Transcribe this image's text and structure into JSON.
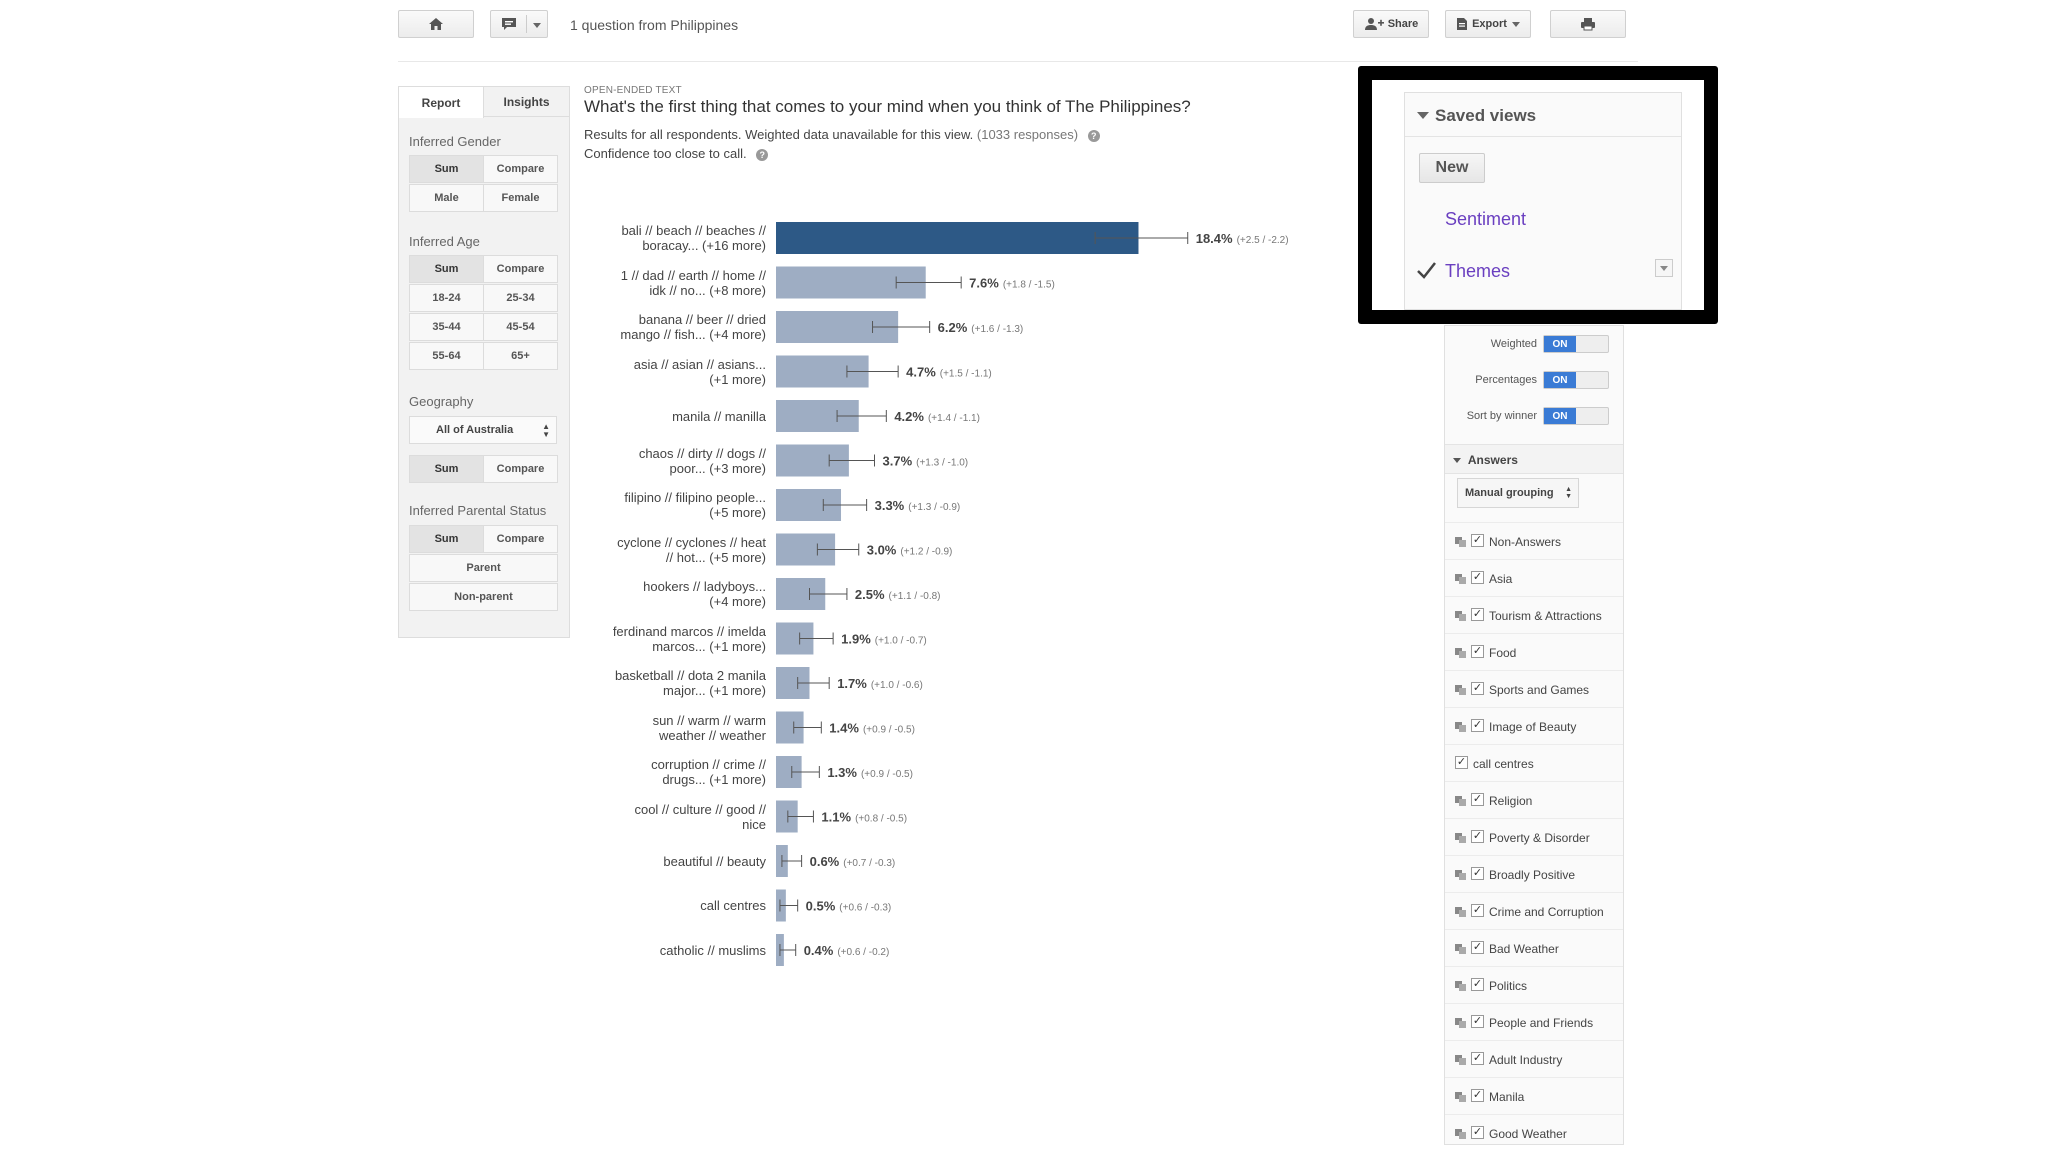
{
  "toolbar": {
    "home_icon": "home-icon",
    "comment_icon": "comment-icon",
    "context": "1 question from Philippines",
    "share_label": "Share",
    "export_label": "Export",
    "print_icon": "print-icon"
  },
  "filters": {
    "tabs": [
      "Report",
      "Insights"
    ],
    "gender": {
      "label": "Inferred Gender",
      "sum": "Sum",
      "compare": "Compare",
      "options": [
        "Male",
        "Female"
      ]
    },
    "age": {
      "label": "Inferred Age",
      "sum": "Sum",
      "compare": "Compare",
      "options": [
        "18-24",
        "25-34",
        "35-44",
        "45-54",
        "55-64",
        "65+"
      ]
    },
    "geography": {
      "label": "Geography",
      "select": "All of Australia",
      "sum": "Sum",
      "compare": "Compare"
    },
    "parental": {
      "label": "Inferred Parental Status",
      "sum": "Sum",
      "compare": "Compare",
      "options": [
        "Parent",
        "Non-parent"
      ]
    }
  },
  "question": {
    "type": "OPEN-ENDED TEXT",
    "title": "What's the first thing that comes to your mind when you think of The Philippines?",
    "meta": "Results for all respondents. Weighted data unavailable for this view.",
    "responses": "(1033 responses)",
    "confidence": "Confidence too close to call."
  },
  "chart_data": {
    "type": "bar",
    "orientation": "horizontal",
    "categories": [
      [
        "bali // beach // beaches //",
        "boracay... (+16 more)"
      ],
      [
        "1 // dad // earth // home //",
        "idk // no... (+8 more)"
      ],
      [
        "banana // beer // dried",
        "mango // fish... (+4 more)"
      ],
      [
        "asia // asian // asians...",
        "(+1 more)"
      ],
      [
        "manila // manilla"
      ],
      [
        "chaos // dirty // dogs //",
        "poor... (+3 more)"
      ],
      [
        "filipino // filipino people...",
        "(+5 more)"
      ],
      [
        "cyclone // cyclones // heat",
        "// hot... (+5 more)"
      ],
      [
        "hookers // ladyboys...",
        "(+4 more)"
      ],
      [
        "ferdinand marcos // imelda",
        "marcos... (+1 more)"
      ],
      [
        "basketball // dota 2 manila",
        "major... (+1 more)"
      ],
      [
        "sun // warm // warm",
        "weather // weather"
      ],
      [
        "corruption // crime //",
        "drugs... (+1 more)"
      ],
      [
        "cool // culture // good //",
        "nice"
      ],
      [
        "beautiful // beauty"
      ],
      [
        "call centres"
      ],
      [
        "catholic // muslims"
      ]
    ],
    "values": [
      18.4,
      7.6,
      6.2,
      4.7,
      4.2,
      3.7,
      3.3,
      3.0,
      2.5,
      1.9,
      1.7,
      1.4,
      1.3,
      1.1,
      0.6,
      0.5,
      0.4
    ],
    "value_labels": [
      "18.4%",
      "7.6%",
      "6.2%",
      "4.7%",
      "4.2%",
      "3.7%",
      "3.3%",
      "3.0%",
      "2.5%",
      "1.9%",
      "1.7%",
      "1.4%",
      "1.3%",
      "1.1%",
      "0.6%",
      "0.5%",
      "0.4%"
    ],
    "error_plus": [
      2.5,
      1.8,
      1.6,
      1.5,
      1.4,
      1.3,
      1.3,
      1.2,
      1.1,
      1.0,
      1.0,
      0.9,
      0.9,
      0.8,
      0.7,
      0.6,
      0.6
    ],
    "error_minus": [
      2.2,
      1.5,
      1.3,
      1.1,
      1.1,
      1.0,
      0.9,
      0.9,
      0.8,
      0.7,
      0.6,
      0.5,
      0.5,
      0.5,
      0.3,
      0.3,
      0.2
    ],
    "error_labels": [
      "(+2.5 / -2.2)",
      "(+1.8 / -1.5)",
      "(+1.6 / -1.3)",
      "(+1.5 / -1.1)",
      "(+1.4 / -1.1)",
      "(+1.3 / -1.0)",
      "(+1.3 / -0.9)",
      "(+1.2 / -0.9)",
      "(+1.1 / -0.8)",
      "(+1.0 / -0.7)",
      "(+1.0 / -0.6)",
      "(+0.9 / -0.5)",
      "(+0.9 / -0.5)",
      "(+0.8 / -0.5)",
      "(+0.7 / -0.3)",
      "(+0.6 / -0.3)",
      "(+0.6 / -0.2)"
    ],
    "highlight_color": "#2d5986",
    "bar_color": "#9eadc3",
    "grid": false
  },
  "options": {
    "weighted": {
      "label": "Weighted",
      "state": "ON"
    },
    "percentages": {
      "label": "Percentages",
      "state": "ON"
    },
    "sort": {
      "label": "Sort by winner",
      "state": "ON"
    }
  },
  "answers": {
    "header": "Answers",
    "grouping": "Manual grouping",
    "items": [
      {
        "label": "Non-Answers",
        "group": true
      },
      {
        "label": "Asia",
        "group": true
      },
      {
        "label": "Tourism & Attractions",
        "group": true
      },
      {
        "label": "Food",
        "group": true
      },
      {
        "label": "Sports and Games",
        "group": true
      },
      {
        "label": "Image of Beauty",
        "group": true
      },
      {
        "label": "call centres",
        "group": false
      },
      {
        "label": "Religion",
        "group": true
      },
      {
        "label": "Poverty & Disorder",
        "group": true
      },
      {
        "label": "Broadly Positive",
        "group": true
      },
      {
        "label": "Crime and Corruption",
        "group": true
      },
      {
        "label": "Bad Weather",
        "group": true
      },
      {
        "label": "Politics",
        "group": true
      },
      {
        "label": "People and Friends",
        "group": true
      },
      {
        "label": "Adult Industry",
        "group": true
      },
      {
        "label": "Manila",
        "group": true
      },
      {
        "label": "Good Weather",
        "group": true
      }
    ]
  },
  "saved_views": {
    "header": "Saved views",
    "new_label": "New",
    "items": [
      "Sentiment",
      "Themes"
    ],
    "selected": "Themes"
  }
}
